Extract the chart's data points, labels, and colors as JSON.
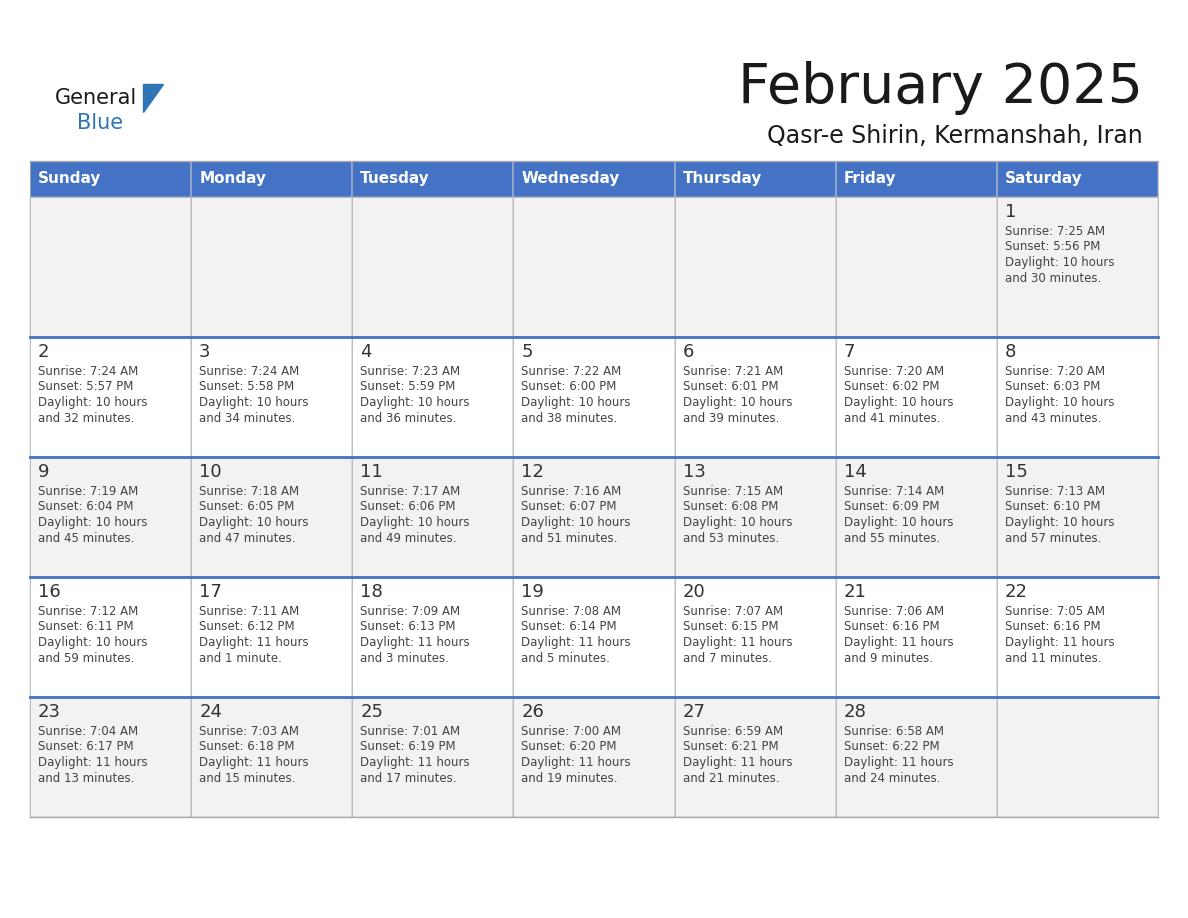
{
  "title": "February 2025",
  "subtitle": "Qasr-e Shirin, Kermanshah, Iran",
  "days_of_week": [
    "Sunday",
    "Monday",
    "Tuesday",
    "Wednesday",
    "Thursday",
    "Friday",
    "Saturday"
  ],
  "header_bg": "#4472C4",
  "header_text": "#FFFFFF",
  "row_bg": [
    "#F2F2F2",
    "#FFFFFF",
    "#F2F2F2",
    "#FFFFFF",
    "#F2F2F2"
  ],
  "cell_border_color": "#AAAAAA",
  "row_divider_color": "#4472C4",
  "day_number_color": "#333333",
  "info_text_color": "#444444",
  "title_color": "#1a1a1a",
  "subtitle_color": "#1a1a1a",
  "blue_text_color": "#2E75B6",
  "logo_general_color": "#1a1a1a",
  "calendar_data": {
    "1": {
      "sunrise": "7:25 AM",
      "sunset": "5:56 PM",
      "daylight_line1": "Daylight: 10 hours",
      "daylight_line2": "and 30 minutes."
    },
    "2": {
      "sunrise": "7:24 AM",
      "sunset": "5:57 PM",
      "daylight_line1": "Daylight: 10 hours",
      "daylight_line2": "and 32 minutes."
    },
    "3": {
      "sunrise": "7:24 AM",
      "sunset": "5:58 PM",
      "daylight_line1": "Daylight: 10 hours",
      "daylight_line2": "and 34 minutes."
    },
    "4": {
      "sunrise": "7:23 AM",
      "sunset": "5:59 PM",
      "daylight_line1": "Daylight: 10 hours",
      "daylight_line2": "and 36 minutes."
    },
    "5": {
      "sunrise": "7:22 AM",
      "sunset": "6:00 PM",
      "daylight_line1": "Daylight: 10 hours",
      "daylight_line2": "and 38 minutes."
    },
    "6": {
      "sunrise": "7:21 AM",
      "sunset": "6:01 PM",
      "daylight_line1": "Daylight: 10 hours",
      "daylight_line2": "and 39 minutes."
    },
    "7": {
      "sunrise": "7:20 AM",
      "sunset": "6:02 PM",
      "daylight_line1": "Daylight: 10 hours",
      "daylight_line2": "and 41 minutes."
    },
    "8": {
      "sunrise": "7:20 AM",
      "sunset": "6:03 PM",
      "daylight_line1": "Daylight: 10 hours",
      "daylight_line2": "and 43 minutes."
    },
    "9": {
      "sunrise": "7:19 AM",
      "sunset": "6:04 PM",
      "daylight_line1": "Daylight: 10 hours",
      "daylight_line2": "and 45 minutes."
    },
    "10": {
      "sunrise": "7:18 AM",
      "sunset": "6:05 PM",
      "daylight_line1": "Daylight: 10 hours",
      "daylight_line2": "and 47 minutes."
    },
    "11": {
      "sunrise": "7:17 AM",
      "sunset": "6:06 PM",
      "daylight_line1": "Daylight: 10 hours",
      "daylight_line2": "and 49 minutes."
    },
    "12": {
      "sunrise": "7:16 AM",
      "sunset": "6:07 PM",
      "daylight_line1": "Daylight: 10 hours",
      "daylight_line2": "and 51 minutes."
    },
    "13": {
      "sunrise": "7:15 AM",
      "sunset": "6:08 PM",
      "daylight_line1": "Daylight: 10 hours",
      "daylight_line2": "and 53 minutes."
    },
    "14": {
      "sunrise": "7:14 AM",
      "sunset": "6:09 PM",
      "daylight_line1": "Daylight: 10 hours",
      "daylight_line2": "and 55 minutes."
    },
    "15": {
      "sunrise": "7:13 AM",
      "sunset": "6:10 PM",
      "daylight_line1": "Daylight: 10 hours",
      "daylight_line2": "and 57 minutes."
    },
    "16": {
      "sunrise": "7:12 AM",
      "sunset": "6:11 PM",
      "daylight_line1": "Daylight: 10 hours",
      "daylight_line2": "and 59 minutes."
    },
    "17": {
      "sunrise": "7:11 AM",
      "sunset": "6:12 PM",
      "daylight_line1": "Daylight: 11 hours",
      "daylight_line2": "and 1 minute."
    },
    "18": {
      "sunrise": "7:09 AM",
      "sunset": "6:13 PM",
      "daylight_line1": "Daylight: 11 hours",
      "daylight_line2": "and 3 minutes."
    },
    "19": {
      "sunrise": "7:08 AM",
      "sunset": "6:14 PM",
      "daylight_line1": "Daylight: 11 hours",
      "daylight_line2": "and 5 minutes."
    },
    "20": {
      "sunrise": "7:07 AM",
      "sunset": "6:15 PM",
      "daylight_line1": "Daylight: 11 hours",
      "daylight_line2": "and 7 minutes."
    },
    "21": {
      "sunrise": "7:06 AM",
      "sunset": "6:16 PM",
      "daylight_line1": "Daylight: 11 hours",
      "daylight_line2": "and 9 minutes."
    },
    "22": {
      "sunrise": "7:05 AM",
      "sunset": "6:16 PM",
      "daylight_line1": "Daylight: 11 hours",
      "daylight_line2": "and 11 minutes."
    },
    "23": {
      "sunrise": "7:04 AM",
      "sunset": "6:17 PM",
      "daylight_line1": "Daylight: 11 hours",
      "daylight_line2": "and 13 minutes."
    },
    "24": {
      "sunrise": "7:03 AM",
      "sunset": "6:18 PM",
      "daylight_line1": "Daylight: 11 hours",
      "daylight_line2": "and 15 minutes."
    },
    "25": {
      "sunrise": "7:01 AM",
      "sunset": "6:19 PM",
      "daylight_line1": "Daylight: 11 hours",
      "daylight_line2": "and 17 minutes."
    },
    "26": {
      "sunrise": "7:00 AM",
      "sunset": "6:20 PM",
      "daylight_line1": "Daylight: 11 hours",
      "daylight_line2": "and 19 minutes."
    },
    "27": {
      "sunrise": "6:59 AM",
      "sunset": "6:21 PM",
      "daylight_line1": "Daylight: 11 hours",
      "daylight_line2": "and 21 minutes."
    },
    "28": {
      "sunrise": "6:58 AM",
      "sunset": "6:22 PM",
      "daylight_line1": "Daylight: 11 hours",
      "daylight_line2": "and 24 minutes."
    }
  },
  "week_layout": [
    [
      null,
      null,
      null,
      null,
      null,
      null,
      1
    ],
    [
      2,
      3,
      4,
      5,
      6,
      7,
      8
    ],
    [
      9,
      10,
      11,
      12,
      13,
      14,
      15
    ],
    [
      16,
      17,
      18,
      19,
      20,
      21,
      22
    ],
    [
      23,
      24,
      25,
      26,
      27,
      28,
      null
    ]
  ],
  "figsize": [
    11.88,
    9.18
  ],
  "dpi": 100
}
